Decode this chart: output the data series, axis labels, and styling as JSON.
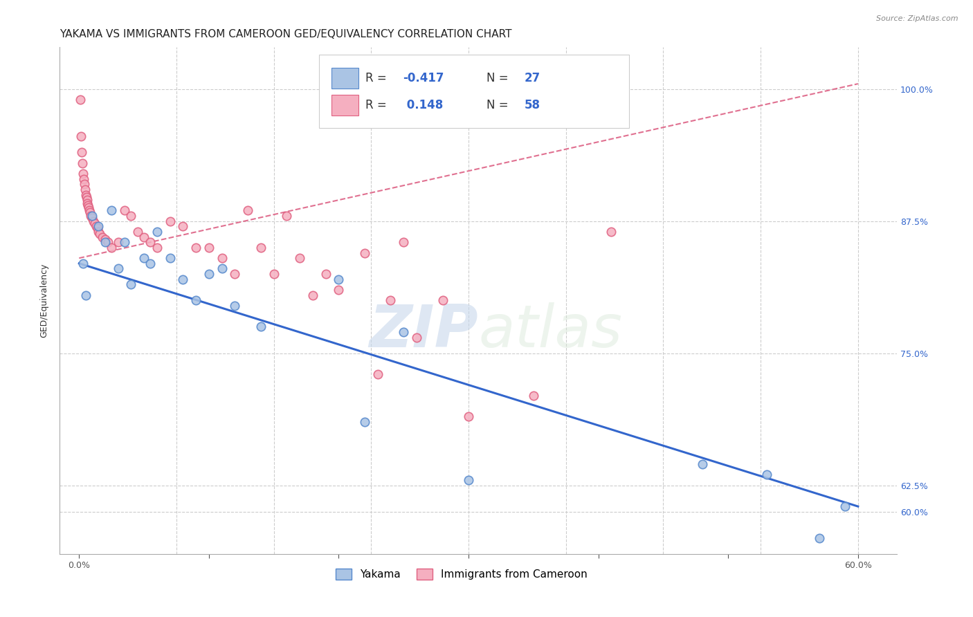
{
  "title": "YAKAMA VS IMMIGRANTS FROM CAMEROON GED/EQUIVALENCY CORRELATION CHART",
  "source": "Source: ZipAtlas.com",
  "xlabel_ticks": [
    0.0,
    10.0,
    20.0,
    30.0,
    40.0,
    50.0,
    60.0
  ],
  "ylabel_ticks": [
    60.0,
    62.5,
    75.0,
    87.5,
    100.0
  ],
  "xlabel_labels": [
    "0.0%",
    "",
    "",
    "",
    "",
    "",
    "60.0%"
  ],
  "ylabel_labels": [
    "60.0%",
    "62.5%",
    "75.0%",
    "87.5%",
    "100.0%"
  ],
  "xmin": -1.5,
  "xmax": 63.0,
  "ymin": 56.0,
  "ymax": 104.0,
  "ylabel": "GED/Equivalency",
  "yakama_color": "#aac4e4",
  "cameroon_color": "#f5afc0",
  "yakama_edge": "#5588cc",
  "cameroon_edge": "#e06080",
  "legend_R1": "-0.417",
  "legend_N1": "27",
  "legend_R2": "0.148",
  "legend_N2": "58",
  "watermark_zip": "ZIP",
  "watermark_atlas": "atlas",
  "watermark_color": "#c8d8ec",
  "yakama_x": [
    0.3,
    0.5,
    1.0,
    1.5,
    2.0,
    2.5,
    3.0,
    3.5,
    4.0,
    5.0,
    5.5,
    6.0,
    7.0,
    8.0,
    9.0,
    10.0,
    11.0,
    12.0,
    14.0,
    20.0,
    22.0,
    25.0,
    30.0,
    48.0,
    53.0,
    57.0,
    59.0
  ],
  "yakama_y": [
    83.5,
    80.5,
    88.0,
    87.0,
    85.5,
    88.5,
    83.0,
    85.5,
    81.5,
    84.0,
    83.5,
    86.5,
    84.0,
    82.0,
    80.0,
    82.5,
    83.0,
    79.5,
    77.5,
    82.0,
    68.5,
    77.0,
    63.0,
    64.5,
    63.5,
    57.5,
    60.5
  ],
  "cameroon_x": [
    0.1,
    0.15,
    0.2,
    0.25,
    0.3,
    0.35,
    0.4,
    0.45,
    0.5,
    0.55,
    0.6,
    0.65,
    0.7,
    0.75,
    0.8,
    0.85,
    0.9,
    1.0,
    1.1,
    1.2,
    1.3,
    1.4,
    1.5,
    1.6,
    1.8,
    2.0,
    2.2,
    2.5,
    3.0,
    3.5,
    4.0,
    4.5,
    5.0,
    5.5,
    6.0,
    7.0,
    8.0,
    9.0,
    10.0,
    11.0,
    12.0,
    13.0,
    14.0,
    15.0,
    16.0,
    17.0,
    18.0,
    19.0,
    20.0,
    22.0,
    23.0,
    24.0,
    25.0,
    26.0,
    28.0,
    30.0,
    35.0,
    41.0
  ],
  "cameroon_y": [
    99.0,
    95.5,
    94.0,
    93.0,
    92.0,
    91.5,
    91.0,
    90.5,
    90.0,
    89.8,
    89.5,
    89.2,
    89.0,
    88.8,
    88.5,
    88.3,
    88.0,
    87.8,
    87.5,
    87.3,
    87.0,
    86.8,
    86.5,
    86.3,
    86.0,
    85.8,
    85.5,
    85.0,
    85.5,
    88.5,
    88.0,
    86.5,
    86.0,
    85.5,
    85.0,
    87.5,
    87.0,
    85.0,
    85.0,
    84.0,
    82.5,
    88.5,
    85.0,
    82.5,
    88.0,
    84.0,
    80.5,
    82.5,
    81.0,
    84.5,
    73.0,
    80.0,
    85.5,
    76.5,
    80.0,
    69.0,
    71.0,
    86.5
  ],
  "blue_line_x": [
    0.0,
    60.0
  ],
  "blue_line_y": [
    83.5,
    60.5
  ],
  "pink_line_x": [
    0.0,
    60.0
  ],
  "pink_line_y": [
    84.0,
    100.5
  ],
  "blue_line_color": "#3366cc",
  "pink_line_color": "#e07090",
  "grid_color": "#cccccc",
  "bg_color": "#ffffff",
  "title_fontsize": 11,
  "axis_fontsize": 9,
  "marker_size": 80
}
